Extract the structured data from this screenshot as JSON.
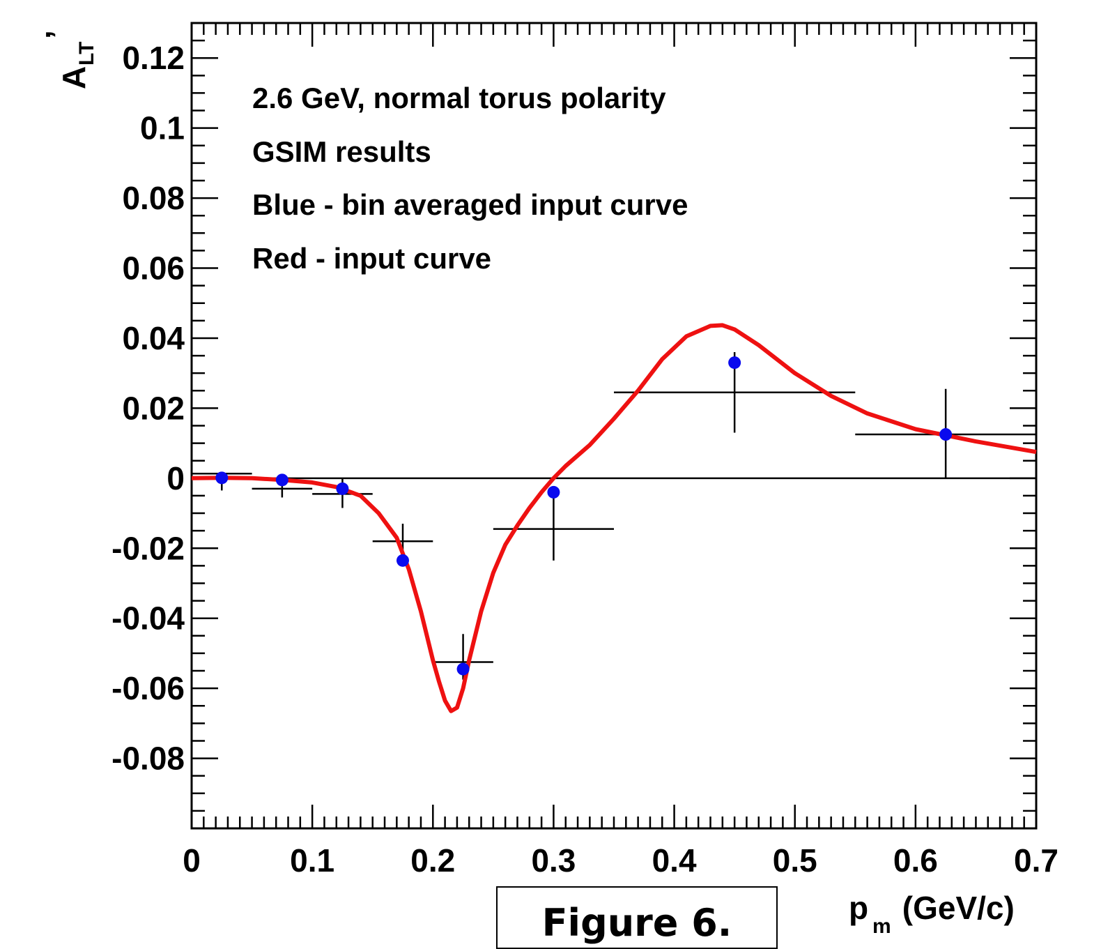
{
  "chart_data": {
    "type": "scatter",
    "xlim": [
      0,
      0.7
    ],
    "ylim": [
      -0.1,
      0.13
    ],
    "x_ticks": [
      "0",
      "0.1",
      "0.2",
      "0.3",
      "0.4",
      "0.5",
      "0.6",
      "0.7"
    ],
    "y_ticks": [
      "-0.08",
      "-0.06",
      "-0.04",
      "-0.02",
      "0",
      "0.02",
      "0.04",
      "0.06",
      "0.08",
      "0.1",
      "0.12"
    ],
    "xlabel": {
      "main": "p",
      "sub": "m",
      "rest": " (GeV/c)"
    },
    "ylabel": {
      "main": "A",
      "sub": "LT",
      "sup": "’"
    },
    "annotations": [
      "2.6 GeV, normal torus polarity",
      "GSIM results",
      "Blue - bin averaged input curve",
      "Red - input curve"
    ],
    "colors": {
      "points": "#0a0aee",
      "curve": "#ee1111",
      "bars": "#000000",
      "zero_line": "#000000"
    },
    "grid": false,
    "blue_points": [
      {
        "x": 0.025,
        "y": 0.0001,
        "xlo": 0.0,
        "xhi": 0.05,
        "ybar": 0.0013,
        "ylo": -0.0035,
        "yhi": 0.0015
      },
      {
        "x": 0.075,
        "y": -0.0005,
        "xlo": 0.05,
        "xhi": 0.1,
        "ybar": -0.003,
        "ylo": -0.0055,
        "yhi": 0.0008
      },
      {
        "x": 0.125,
        "y": -0.003,
        "xlo": 0.1,
        "xhi": 0.15,
        "ybar": -0.0045,
        "ylo": -0.0085,
        "yhi": 0.0
      },
      {
        "x": 0.175,
        "y": -0.0235,
        "xlo": 0.15,
        "xhi": 0.2,
        "ybar": -0.018,
        "ylo": -0.0235,
        "yhi": -0.013
      },
      {
        "x": 0.225,
        "y": -0.0545,
        "xlo": 0.2,
        "xhi": 0.25,
        "ybar": -0.0525,
        "ylo": -0.0575,
        "yhi": -0.0445
      },
      {
        "x": 0.3,
        "y": -0.004,
        "xlo": 0.25,
        "xhi": 0.35,
        "ybar": -0.0145,
        "ylo": -0.0235,
        "yhi": -0.0035
      },
      {
        "x": 0.45,
        "y": 0.033,
        "xlo": 0.35,
        "xhi": 0.55,
        "ybar": 0.0245,
        "ylo": 0.013,
        "yhi": 0.036
      },
      {
        "x": 0.625,
        "y": 0.0125,
        "xlo": 0.55,
        "xhi": 0.7,
        "ybar": 0.0125,
        "ylo": 0.0,
        "yhi": 0.0255
      }
    ],
    "red_curve": {
      "x": [
        0.0,
        0.025,
        0.05,
        0.075,
        0.1,
        0.12,
        0.14,
        0.155,
        0.17,
        0.18,
        0.19,
        0.2,
        0.205,
        0.21,
        0.215,
        0.22,
        0.225,
        0.23,
        0.24,
        0.25,
        0.26,
        0.27,
        0.28,
        0.29,
        0.3,
        0.31,
        0.33,
        0.35,
        0.37,
        0.39,
        0.41,
        0.43,
        0.44,
        0.45,
        0.47,
        0.5,
        0.53,
        0.56,
        0.6,
        0.65,
        0.7
      ],
      "y": [
        0.0,
        0.0001,
        0.0,
        -0.0005,
        -0.0012,
        -0.0025,
        -0.005,
        -0.01,
        -0.017,
        -0.026,
        -0.038,
        -0.052,
        -0.058,
        -0.0635,
        -0.0665,
        -0.0655,
        -0.06,
        -0.052,
        -0.038,
        -0.027,
        -0.019,
        -0.0135,
        -0.0085,
        -0.004,
        0.0,
        0.0035,
        0.0095,
        0.017,
        0.025,
        0.034,
        0.0405,
        0.0435,
        0.0437,
        0.0425,
        0.038,
        0.03,
        0.0235,
        0.0185,
        0.014,
        0.0105,
        0.0075
      ]
    }
  },
  "caption": "Figure 6."
}
